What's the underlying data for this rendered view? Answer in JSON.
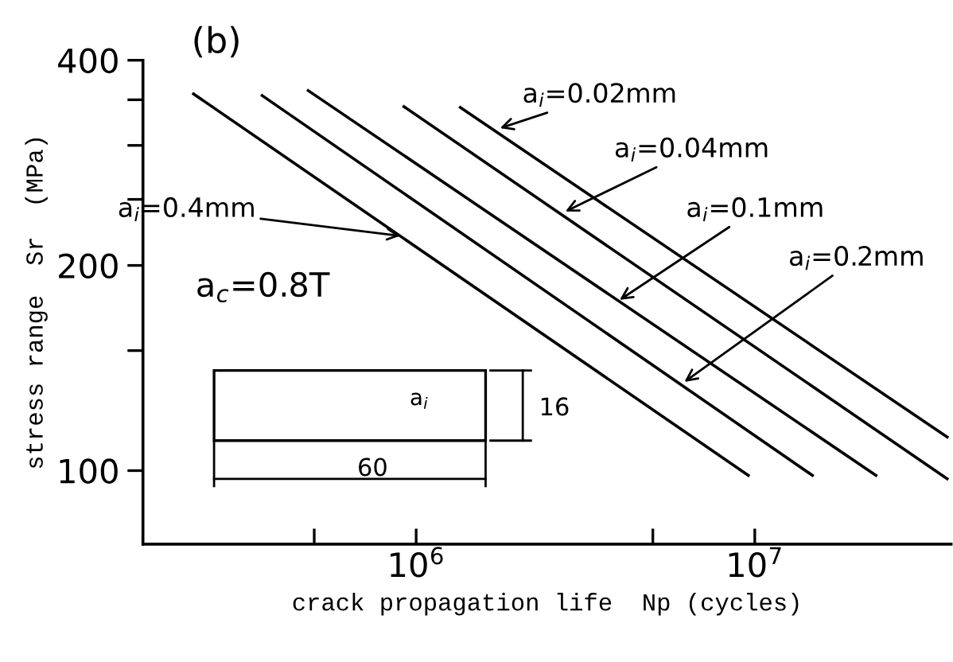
{
  "chart_data": {
    "type": "line",
    "title": "(b)",
    "xlabel": "crack propagation life  Np (cycles)",
    "ylabel": "stress range  Sr  (MPa)",
    "log": "xy",
    "xlim": [
      156000,
      38000000
    ],
    "ylim": [
      78,
      400
    ],
    "xticks": [
      {
        "value": 500000,
        "label": null
      },
      {
        "value": 1000000,
        "label": "10$^{6}$"
      },
      {
        "value": 5000000,
        "label": null
      },
      {
        "value": 10000000,
        "label": "10$^{7}$"
      }
    ],
    "yticks": [
      100,
      {
        "value": 150,
        "label": null
      },
      200,
      {
        "value": 250,
        "label": null
      },
      {
        "value": 300,
        "label": null
      },
      {
        "value": 350,
        "label": null
      },
      400
    ],
    "grid": false,
    "legend": false,
    "marker": "none",
    "line_style": "solid",
    "series": [
      {
        "color": "#000000",
        "x": [
          220000,
          9570000
        ],
        "values": [
          357,
          98.4
        ]
      },
      {
        "color": "#000000",
        "x": [
          351000,
          14800000
        ],
        "values": [
          355,
          98.4
        ]
      },
      {
        "color": "#000000",
        "x": [
          480000,
          22800000
        ],
        "values": [
          361,
          98.4
        ]
      },
      {
        "color": "#000000",
        "x": [
          920000,
          37000000
        ],
        "values": [
          342,
          97.3
        ]
      },
      {
        "color": "#000000",
        "x": [
          1350000,
          37000000
        ],
        "values": [
          341,
          112
        ]
      }
    ],
    "annotations": [
      {
        "text": "a$_{i}$=0.02mm",
        "x": 1770000,
        "y": 318
      },
      {
        "text": "a$_{i}$=0.04mm",
        "x": 2760000,
        "y": 240
      },
      {
        "text": "a$_{i}$=0.1mm",
        "x": 3990000,
        "y": 178
      },
      {
        "text": "a$_{i}$=0.2mm",
        "x": 6200000,
        "y": 135
      },
      {
        "text": "a$_{i}$=0.4mm",
        "x": 898000,
        "y": 221
      },
      "a$_{c}$=0.8T",
      "a$_{i}$",
      "16",
      "60"
    ]
  }
}
